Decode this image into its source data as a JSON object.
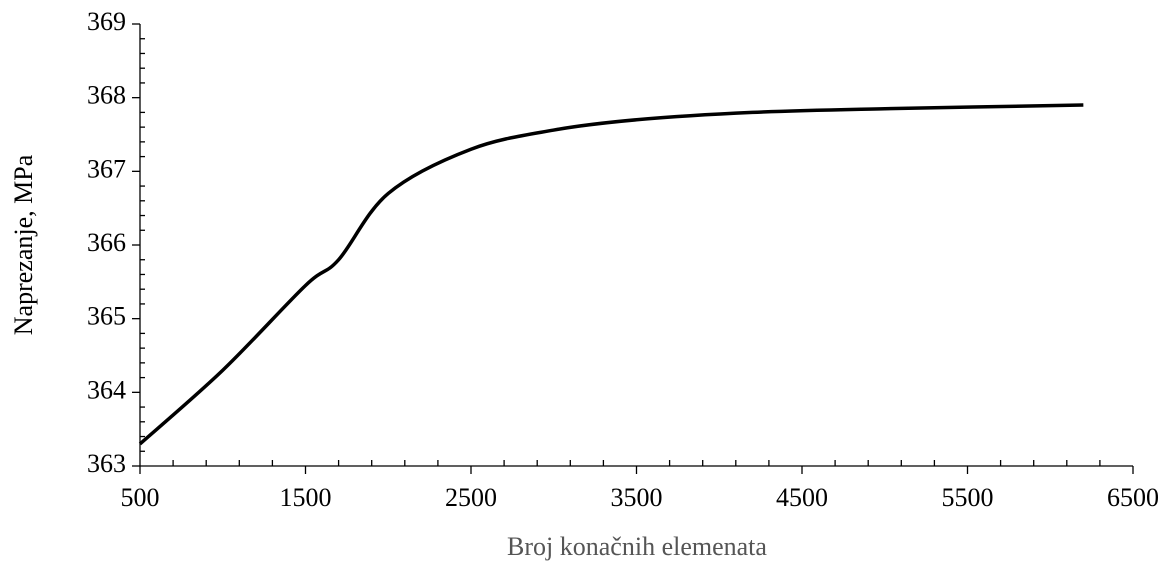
{
  "chart_data": {
    "type": "line",
    "xlabel": "Broj konačnih elemenata",
    "ylabel": "Naprezanje, MPa",
    "x": [
      500,
      1000,
      1500,
      1700,
      2000,
      2500,
      3000,
      3500,
      4200,
      5000,
      6200
    ],
    "series": [
      {
        "name": "Naprezanje",
        "color": "#000000",
        "values": [
          363.3,
          364.3,
          365.45,
          365.8,
          366.7,
          367.3,
          367.56,
          367.7,
          367.8,
          367.85,
          367.9
        ]
      }
    ],
    "xlim": [
      500,
      6500
    ],
    "xticks": [
      500,
      1500,
      2500,
      3500,
      4500,
      5500,
      6500
    ],
    "xminorticks": [
      700,
      900,
      1100,
      1300,
      1700,
      1900,
      2100,
      2300,
      2700,
      2900,
      3100,
      3300,
      3700,
      3900,
      4100,
      4300,
      4700,
      4900,
      5100,
      5300,
      5700,
      5900,
      6100,
      6300
    ],
    "ylim": [
      363,
      369
    ],
    "yticks": [
      363,
      364,
      365,
      366,
      367,
      368,
      369
    ],
    "yminorticks": [
      363.2,
      363.4,
      363.6,
      363.8,
      364.2,
      364.4,
      364.6,
      364.8,
      365.2,
      365.4,
      365.6,
      365.8,
      366.2,
      366.4,
      366.6,
      366.8,
      367.2,
      367.4,
      367.6,
      367.8,
      368.2,
      368.4,
      368.6,
      368.8
    ],
    "grid": false
  }
}
